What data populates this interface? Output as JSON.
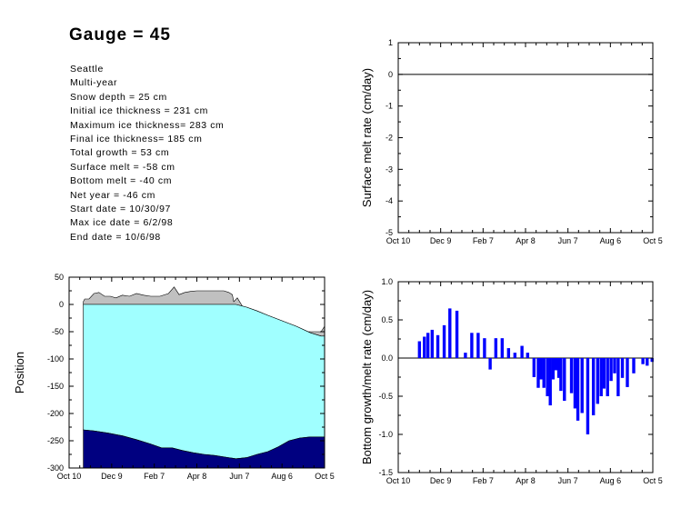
{
  "header": {
    "title": "Gauge = 45",
    "info_lines": [
      "Seattle",
      "Multi-year",
      "Snow depth = 25 cm",
      "Initial ice thickness = 231 cm",
      "Maximum ice thickness= 283 cm",
      "Final ice thickness= 185 cm",
      "Total growth = 53 cm",
      "Surface melt = -58 cm",
      "Bottom melt = -40 cm",
      "Net year = -46 cm",
      "Start date = 10/30/97",
      "Max ice date = 6/2/98",
      "End date = 10/6/98"
    ]
  },
  "colors": {
    "snow": "#c0c0c0",
    "ice": "#a0ffff",
    "bottom": "#000080",
    "bars": "#0000ff"
  },
  "chart_data": [
    {
      "id": "surface-melt",
      "type": "line",
      "title": "",
      "xlabel": "",
      "ylabel": "Surface melt rate (cm/day)",
      "x_tick_labels": [
        "Oct 10",
        "Dec 9",
        "Feb 7",
        "Apr 8",
        "Jun 7",
        "Aug 6",
        "Oct 5"
      ],
      "x_tick_days": [
        0,
        60,
        120,
        180,
        240,
        300,
        360
      ],
      "xlim": [
        0,
        360
      ],
      "ylim": [
        -5,
        1
      ],
      "y_ticks": [
        1,
        0,
        -1,
        -2,
        -3,
        -4,
        -5
      ],
      "series": [
        {
          "x": [
            0,
            360
          ],
          "y": [
            0,
            0
          ]
        }
      ]
    },
    {
      "id": "position",
      "type": "area",
      "title": "",
      "xlabel": "",
      "ylabel": "Position",
      "x_tick_labels": [
        "Oct 10",
        "Dec 9",
        "Feb 7",
        "Apr 8",
        "Jun 7",
        "Aug 6",
        "Oct 5"
      ],
      "x_tick_days": [
        0,
        60,
        120,
        180,
        240,
        300,
        360
      ],
      "xlim": [
        0,
        360
      ],
      "ylim": [
        -300,
        50
      ],
      "y_ticks": [
        50,
        0,
        -50,
        -100,
        -150,
        -200,
        -250,
        -300
      ],
      "series": [
        {
          "name": "Snow surface",
          "x": [
            20,
            22,
            28,
            35,
            42,
            50,
            58,
            66,
            75,
            85,
            95,
            105,
            115,
            128,
            140,
            148,
            155,
            163,
            172,
            180,
            190,
            200,
            210,
            218,
            225,
            230,
            232,
            237,
            245,
            260,
            280,
            300,
            320,
            335,
            345,
            355,
            360
          ],
          "y": [
            5,
            10,
            10,
            20,
            22,
            15,
            15,
            12,
            17,
            15,
            20,
            17,
            15,
            15,
            20,
            32,
            18,
            22,
            24,
            25,
            25,
            25,
            25,
            25,
            22,
            18,
            5,
            12,
            -5,
            -15,
            -25,
            -35,
            -45,
            -50,
            -50,
            -50,
            -40
          ]
        },
        {
          "name": "Ice top",
          "x": [
            20,
            225,
            235,
            250,
            265,
            280,
            300,
            320,
            340,
            355,
            360
          ],
          "y": [
            0,
            0,
            0,
            -5,
            -12,
            -20,
            -30,
            -40,
            -52,
            -58,
            -58
          ]
        },
        {
          "name": "Ice bottom",
          "x": [
            20,
            35,
            55,
            75,
            95,
            115,
            130,
            145,
            160,
            175,
            190,
            205,
            220,
            235,
            250,
            265,
            280,
            295,
            310,
            325,
            340,
            355,
            360
          ],
          "y": [
            -230,
            -232,
            -236,
            -241,
            -248,
            -256,
            -263,
            -263,
            -268,
            -272,
            -275,
            -277,
            -280,
            -283,
            -281,
            -275,
            -270,
            -261,
            -250,
            -245,
            -243,
            -243,
            -243
          ]
        }
      ]
    },
    {
      "id": "bottom-rate",
      "type": "bar",
      "title": "",
      "xlabel": "",
      "ylabel": "Bottom growth/melt rate (cm/day)",
      "x_tick_labels": [
        "Oct 10",
        "Dec 9",
        "Feb 7",
        "Apr 8",
        "Jun 7",
        "Aug 6",
        "Oct 5"
      ],
      "x_tick_days": [
        0,
        60,
        120,
        180,
        240,
        300,
        360
      ],
      "xlim": [
        0,
        360
      ],
      "ylim": [
        -1.5,
        1.0
      ],
      "y_ticks": [
        1.0,
        0.5,
        0.0,
        -0.5,
        -1.0,
        -1.5
      ],
      "x": [
        30,
        37,
        42,
        48,
        56,
        65,
        73,
        83,
        95,
        104,
        113,
        122,
        130,
        138,
        147,
        156,
        165,
        175,
        183,
        192,
        198,
        202,
        206,
        211,
        215,
        219,
        223,
        227,
        230,
        235,
        245,
        250,
        254,
        260,
        268,
        276,
        282,
        287,
        291,
        296,
        301,
        306,
        311,
        317,
        324,
        333,
        346,
        352,
        359
      ],
      "values": [
        0.22,
        0.28,
        0.33,
        0.37,
        0.3,
        0.43,
        0.65,
        0.62,
        0.07,
        0.33,
        0.33,
        0.26,
        -0.15,
        0.26,
        0.26,
        0.13,
        0.07,
        0.16,
        0.07,
        -0.25,
        -0.39,
        -0.28,
        -0.39,
        -0.5,
        -0.62,
        -0.28,
        -0.16,
        -0.26,
        -0.43,
        -0.56,
        -0.46,
        -0.66,
        -0.82,
        -0.72,
        -1.0,
        -0.75,
        -0.6,
        -0.5,
        -0.4,
        -0.5,
        -0.3,
        -0.2,
        -0.5,
        -0.26,
        -0.38,
        -0.2,
        -0.08,
        -0.1,
        -0.05
      ]
    }
  ]
}
